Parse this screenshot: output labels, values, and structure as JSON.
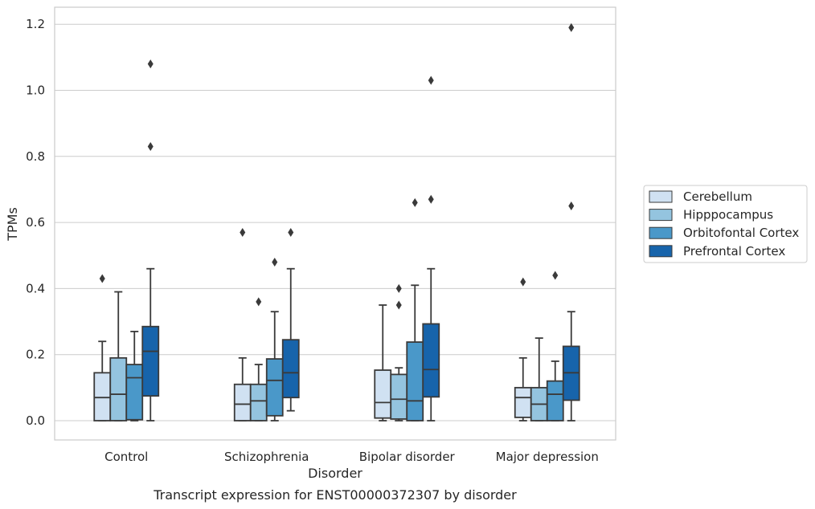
{
  "caption": "Transcript expression for ENST00000372307 by disorder",
  "chart_data": {
    "type": "box",
    "title": "",
    "xlabel": "Disorder",
    "ylabel": "TPMs",
    "ylim": [
      -0.058,
      1.25
    ],
    "yticks": [
      "0.0",
      "0.2",
      "0.4",
      "0.6",
      "0.8",
      "1.0",
      "1.2"
    ],
    "ytick_values": [
      0,
      0.2,
      0.4,
      0.6,
      0.8,
      1.0,
      1.2
    ],
    "grid": "horizontal",
    "legend_position": "right",
    "categories": [
      "Control",
      "Schizophrenia",
      "Bipolar disorder",
      "Major depression"
    ],
    "series": [
      {
        "name": "Cerebellum",
        "color": "#d0e1f2",
        "boxes": [
          {
            "min": 0.0,
            "q1": 0.0,
            "median": 0.07,
            "q3": 0.145,
            "max": 0.24,
            "outliers": [
              0.43
            ]
          },
          {
            "min": 0.0,
            "q1": 0.0,
            "median": 0.05,
            "q3": 0.11,
            "max": 0.19,
            "outliers": [
              0.57
            ]
          },
          {
            "min": 0.0,
            "q1": 0.008,
            "median": 0.055,
            "q3": 0.153,
            "max": 0.35,
            "outliers": []
          },
          {
            "min": 0.0,
            "q1": 0.01,
            "median": 0.07,
            "q3": 0.1,
            "max": 0.19,
            "outliers": [
              0.42
            ]
          }
        ]
      },
      {
        "name": "Hipppocampus",
        "color": "#94c4df",
        "boxes": [
          {
            "min": 0.0,
            "q1": 0.0,
            "median": 0.08,
            "q3": 0.19,
            "max": 0.39,
            "outliers": []
          },
          {
            "min": 0.0,
            "q1": 0.0,
            "median": 0.06,
            "q3": 0.11,
            "max": 0.17,
            "outliers": [
              0.36
            ]
          },
          {
            "min": 0.0,
            "q1": 0.005,
            "median": 0.065,
            "q3": 0.14,
            "max": 0.16,
            "outliers": [
              0.35,
              0.4
            ]
          },
          {
            "min": 0.0,
            "q1": 0.0,
            "median": 0.05,
            "q3": 0.1,
            "max": 0.25,
            "outliers": []
          }
        ]
      },
      {
        "name": "Orbitofontal Cortex",
        "color": "#4a98c9",
        "boxes": [
          {
            "min": 0.0,
            "q1": 0.003,
            "median": 0.13,
            "q3": 0.17,
            "max": 0.27,
            "outliers": []
          },
          {
            "min": 0.0,
            "q1": 0.015,
            "median": 0.122,
            "q3": 0.187,
            "max": 0.33,
            "outliers": [
              0.48
            ]
          },
          {
            "min": 0.0,
            "q1": 0.0,
            "median": 0.06,
            "q3": 0.238,
            "max": 0.41,
            "outliers": [
              0.66
            ]
          },
          {
            "min": 0.0,
            "q1": 0.0,
            "median": 0.08,
            "q3": 0.12,
            "max": 0.18,
            "outliers": [
              0.44
            ]
          }
        ]
      },
      {
        "name": "Prefrontal Cortex",
        "color": "#1764ab",
        "boxes": [
          {
            "min": 0.0,
            "q1": 0.075,
            "median": 0.21,
            "q3": 0.285,
            "max": 0.46,
            "outliers": [
              0.83,
              1.08
            ]
          },
          {
            "min": 0.03,
            "q1": 0.07,
            "median": 0.145,
            "q3": 0.245,
            "max": 0.46,
            "outliers": [
              0.57
            ]
          },
          {
            "min": 0.0,
            "q1": 0.072,
            "median": 0.155,
            "q3": 0.293,
            "max": 0.46,
            "outliers": [
              0.67,
              1.03
            ]
          },
          {
            "min": 0.0,
            "q1": 0.062,
            "median": 0.145,
            "q3": 0.225,
            "max": 0.33,
            "outliers": [
              0.65,
              1.19
            ]
          }
        ]
      }
    ]
  }
}
